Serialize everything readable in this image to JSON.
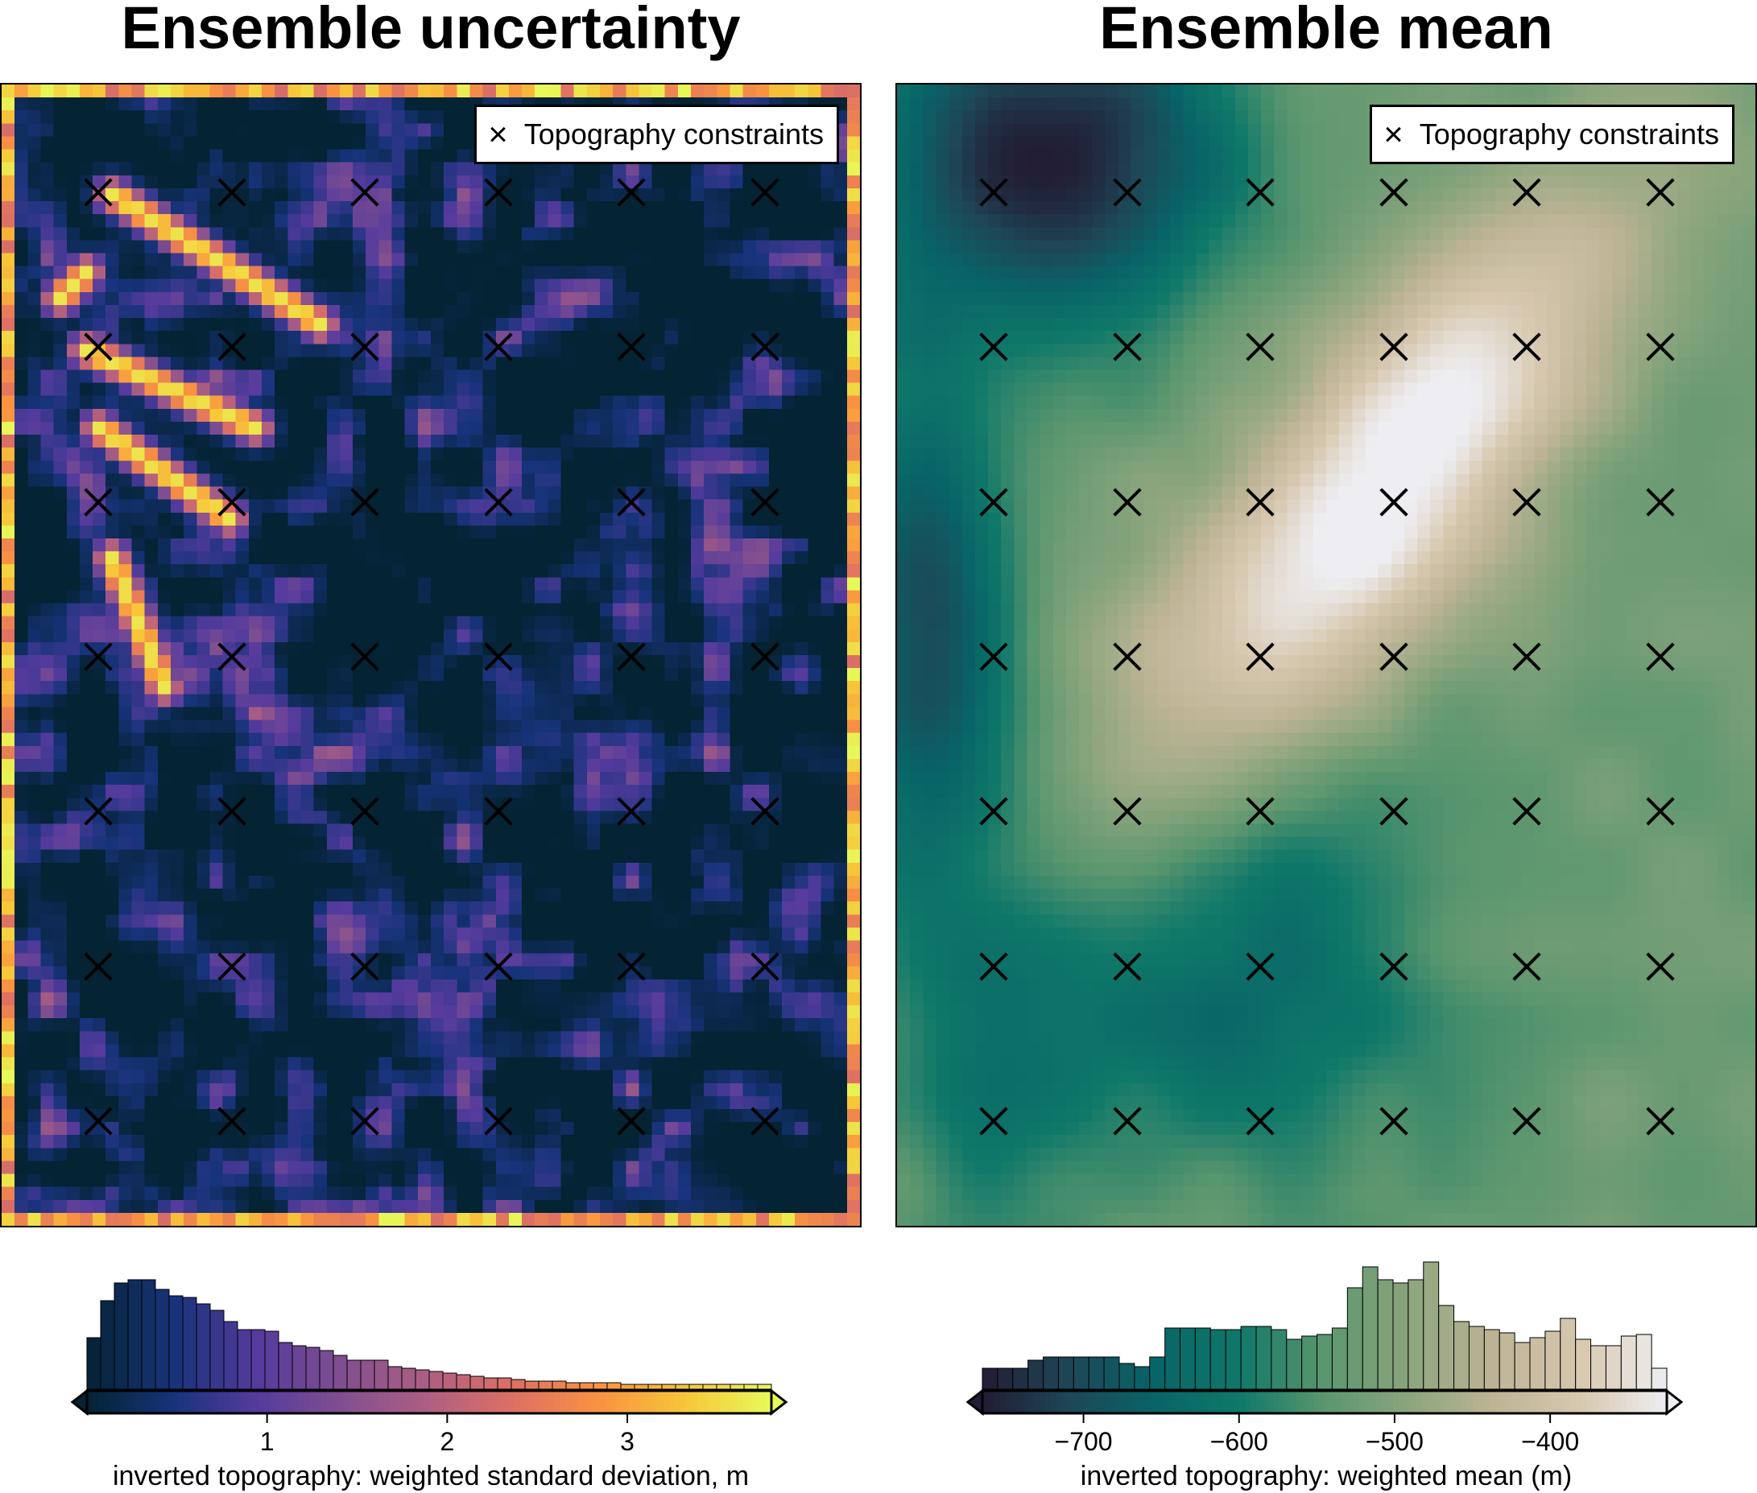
{
  "left_panel": {
    "title": "Ensemble uncertainty",
    "legend_symbol": "×",
    "legend_label": "Topography constraints",
    "colormap": "thermal",
    "colorbar": {
      "label": "inverted topography: weighted standard deviation, m",
      "ticks": [
        "1",
        "2",
        "3"
      ],
      "tick_values": [
        1,
        2,
        3
      ],
      "range": [
        0.0,
        3.8
      ],
      "histogram": [
        0.32,
        0.55,
        0.66,
        0.68,
        0.68,
        0.62,
        0.58,
        0.57,
        0.53,
        0.49,
        0.42,
        0.37,
        0.37,
        0.36,
        0.29,
        0.27,
        0.26,
        0.24,
        0.21,
        0.18,
        0.18,
        0.18,
        0.14,
        0.13,
        0.12,
        0.11,
        0.1,
        0.09,
        0.08,
        0.07,
        0.07,
        0.06,
        0.05,
        0.05,
        0.05,
        0.04,
        0.04,
        0.04,
        0.04,
        0.03,
        0.03,
        0.03,
        0.03,
        0.03,
        0.03,
        0.03,
        0.03,
        0.03,
        0.03,
        0.03
      ]
    }
  },
  "right_panel": {
    "title": "Ensemble mean",
    "legend_symbol": "×",
    "legend_label": "Topography constraints",
    "colormap": "rain",
    "colorbar": {
      "label": "inverted topography: weighted mean (m)",
      "ticks": [
        "−700",
        "−600",
        "−500",
        "−400"
      ],
      "tick_values": [
        -700,
        -600,
        -500,
        -400
      ],
      "range": [
        -765,
        -325
      ],
      "histogram": [
        0.13,
        0.13,
        0.13,
        0.18,
        0.2,
        0.2,
        0.2,
        0.2,
        0.2,
        0.16,
        0.14,
        0.2,
        0.38,
        0.38,
        0.38,
        0.37,
        0.37,
        0.39,
        0.39,
        0.37,
        0.31,
        0.33,
        0.34,
        0.38,
        0.63,
        0.76,
        0.68,
        0.66,
        0.68,
        0.79,
        0.52,
        0.42,
        0.39,
        0.37,
        0.35,
        0.29,
        0.32,
        0.36,
        0.44,
        0.31,
        0.27,
        0.27,
        0.33,
        0.34,
        0.13
      ]
    }
  },
  "constraints": {
    "cols": 6,
    "rows": 7
  }
}
